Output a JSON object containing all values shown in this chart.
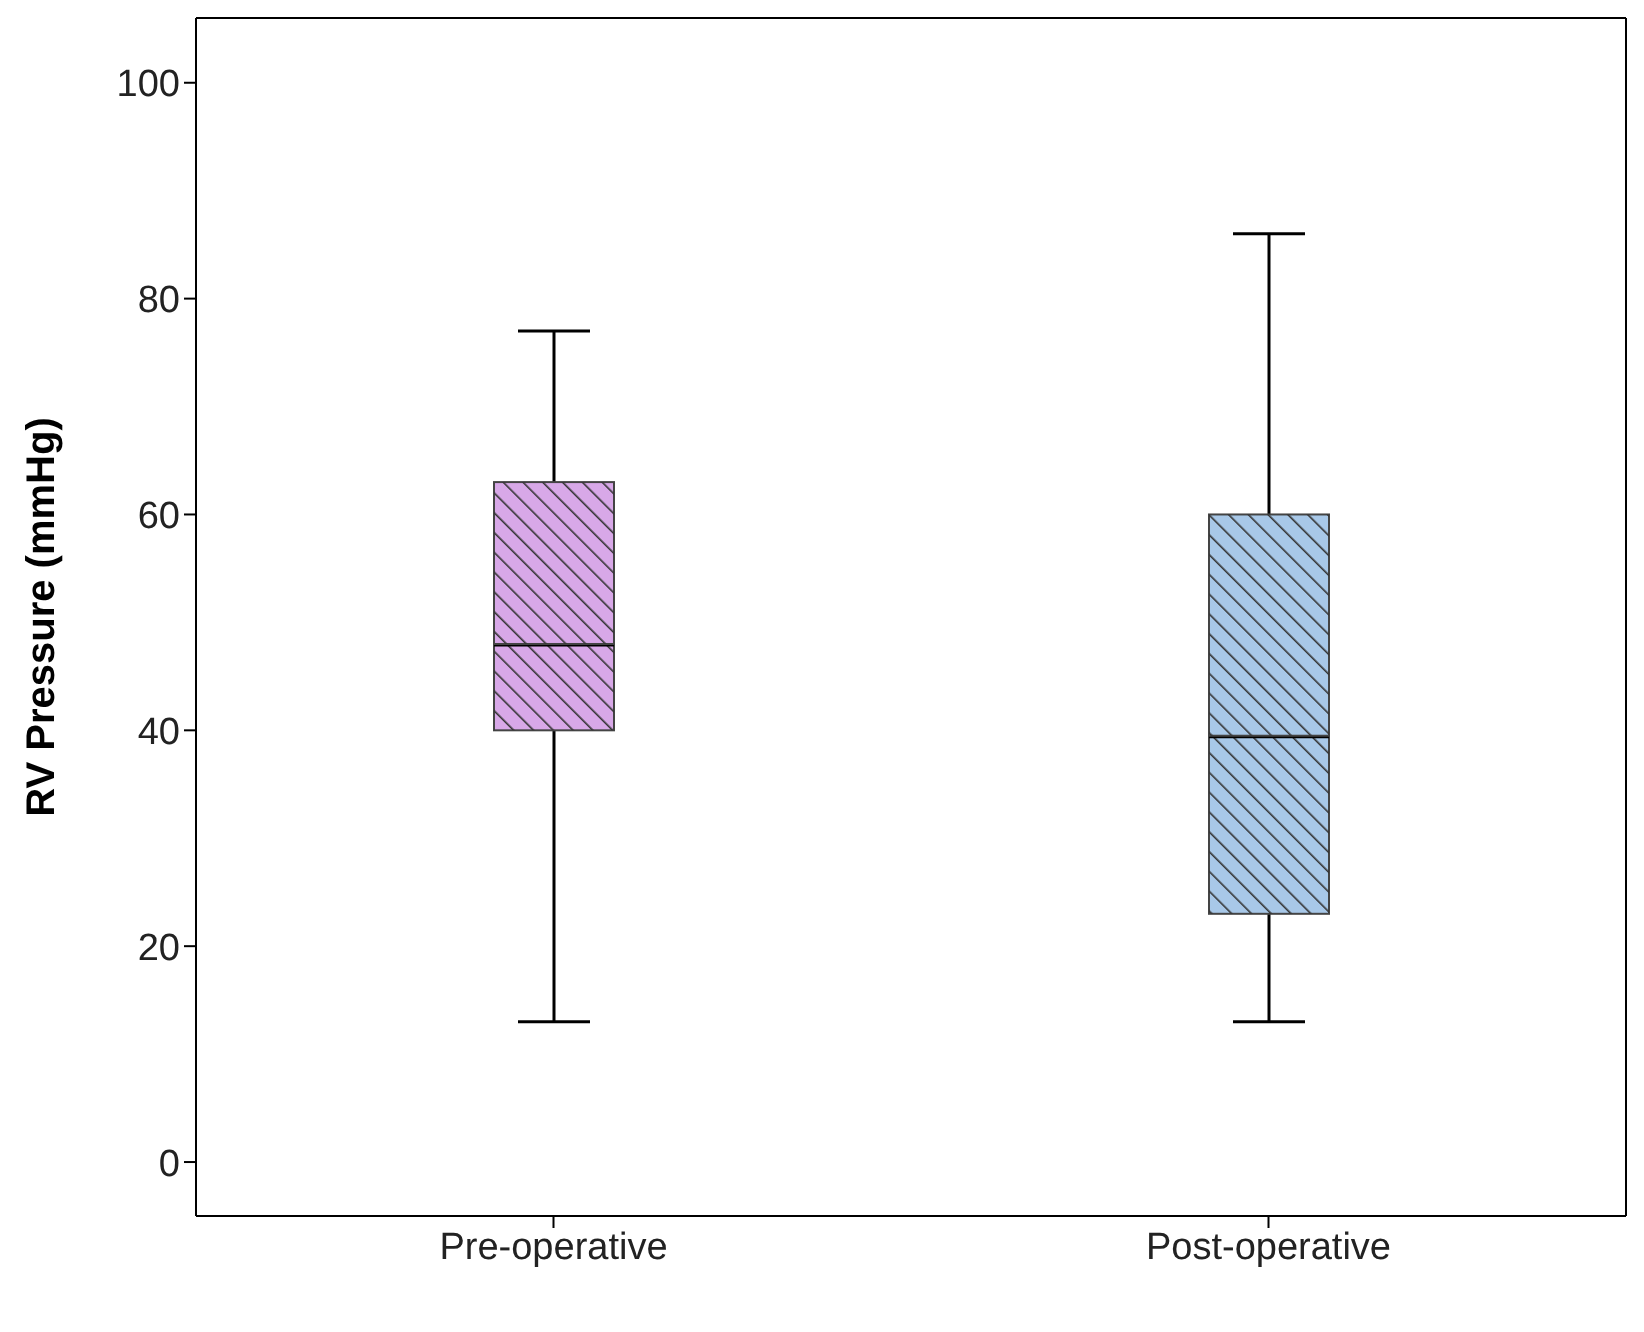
{
  "chart_data": {
    "type": "box",
    "ylabel": "RV Pressure (mmHg)",
    "categories": [
      "Pre-operative",
      "Post-operative"
    ],
    "boxes": [
      {
        "low": 13,
        "q1": 40,
        "median": 48,
        "q3": 63,
        "high": 77
      },
      {
        "low": 13,
        "q1": 23,
        "median": 39.5,
        "q3": 60,
        "high": 86
      }
    ],
    "colors": [
      "#d8a8e8",
      "#a8c8e8"
    ],
    "ylim": [
      -5,
      106
    ],
    "yticks": [
      0,
      20,
      40,
      60,
      80,
      100
    ],
    "grid": false
  }
}
